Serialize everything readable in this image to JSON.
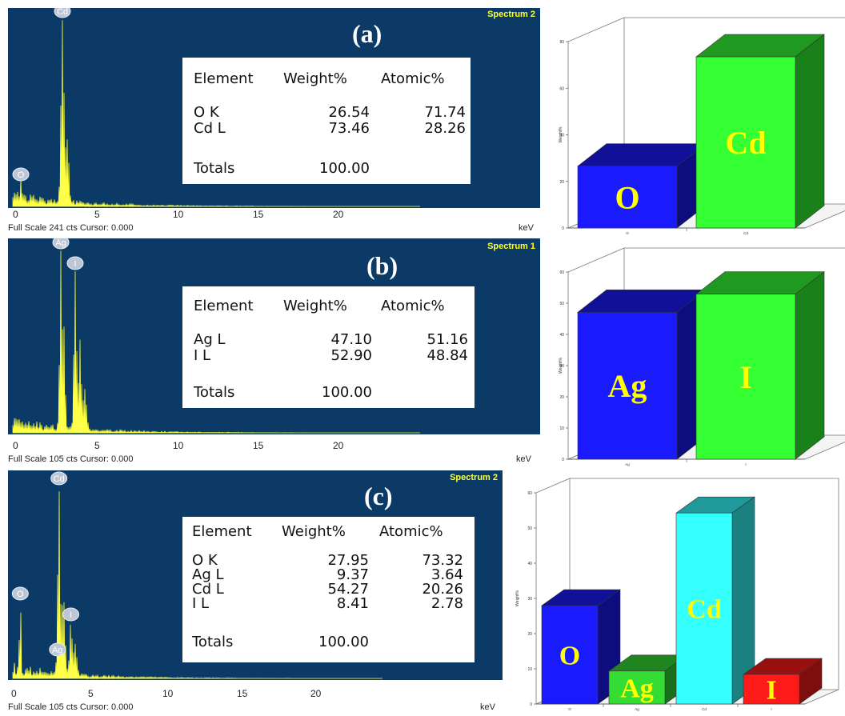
{
  "panels": [
    {
      "letter": "(a)",
      "spectrum_name": "Spectrum 2",
      "full_scale_text": "Full Scale 241 cts Cursor: 0.000",
      "kev_label": "keV",
      "x_ticks": [
        "0",
        "5",
        "10",
        "15",
        "20"
      ],
      "table": {
        "headers": [
          "Element",
          "Weight%",
          "Atomic%"
        ],
        "rows": [
          [
            "O K",
            "26.54",
            "71.74"
          ],
          [
            "Cd L",
            "73.46",
            "28.26"
          ]
        ],
        "total_label": "Totals",
        "total_value": "100.00"
      },
      "peaks": [
        {
          "label": "Cd",
          "kev": 3.1
        },
        {
          "label": "O",
          "kev": 0.5
        }
      ]
    },
    {
      "letter": "(b)",
      "spectrum_name": "Spectrum 1",
      "full_scale_text": "Full Scale 105 cts Cursor: 0.000",
      "kev_label": "keV",
      "x_ticks": [
        "0",
        "5",
        "10",
        "15",
        "20"
      ],
      "table": {
        "headers": [
          "Element",
          "Weight%",
          "Atomic%"
        ],
        "rows": [
          [
            "Ag L",
            "47.10",
            "51.16"
          ],
          [
            "I L",
            "52.90",
            "48.84"
          ]
        ],
        "total_label": "Totals",
        "total_value": "100.00"
      },
      "peaks": [
        {
          "label": "Ag",
          "kev": 3.0
        },
        {
          "label": "I",
          "kev": 3.9
        }
      ]
    },
    {
      "letter": "(c)",
      "spectrum_name": "Spectrum 2",
      "full_scale_text": "Full Scale 105 cts Cursor: 0.000",
      "kev_label": "keV",
      "x_ticks": [
        "0",
        "5",
        "10",
        "15",
        "20"
      ],
      "table": {
        "headers": [
          "Element",
          "Weight%",
          "Atomic%"
        ],
        "rows": [
          [
            "O K",
            "27.95",
            "73.32"
          ],
          [
            "Ag L",
            "9.37",
            "3.64"
          ],
          [
            "Cd L",
            "54.27",
            "20.26"
          ],
          [
            "I L",
            "8.41",
            "2.78"
          ]
        ],
        "total_label": "Totals",
        "total_value": "100.00"
      },
      "peaks": [
        {
          "label": "Cd",
          "kev": 3.1
        },
        {
          "label": "Ag",
          "kev": 3.0
        },
        {
          "label": "O",
          "kev": 0.5
        },
        {
          "label": "I",
          "kev": 3.9
        }
      ]
    }
  ],
  "chart_data": [
    {
      "type": "bar",
      "categories": [
        "O",
        "Cd"
      ],
      "values": [
        26.54,
        73.46
      ],
      "bar_labels": [
        "O",
        "Cd"
      ],
      "colors": [
        "#1a1aff",
        "#33ff33"
      ],
      "ylabel": "Weight%",
      "ylim": [
        0,
        80
      ],
      "yticks": [
        "0",
        "20",
        "40",
        "60",
        "80"
      ]
    },
    {
      "type": "bar",
      "categories": [
        "Ag",
        "I"
      ],
      "values": [
        47.1,
        52.9
      ],
      "bar_labels": [
        "Ag",
        "I"
      ],
      "colors": [
        "#1a1aff",
        "#33ff33"
      ],
      "ylabel": "Weight%",
      "ylim": [
        0,
        60
      ],
      "yticks": [
        "0",
        "10",
        "20",
        "30",
        "40",
        "50",
        "60"
      ]
    },
    {
      "type": "bar",
      "categories": [
        "O",
        "Ag",
        "Cd",
        "I"
      ],
      "values": [
        27.95,
        9.37,
        54.27,
        8.41
      ],
      "bar_labels": [
        "O",
        "Ag",
        "Cd",
        "I"
      ],
      "colors": [
        "#1a1aff",
        "#33dd33",
        "#33ffff",
        "#ff1a1a"
      ],
      "ylabel": "Weight%",
      "ylim": [
        0,
        60
      ],
      "yticks": [
        "0",
        "10",
        "20",
        "30",
        "40",
        "50",
        "60"
      ]
    }
  ]
}
